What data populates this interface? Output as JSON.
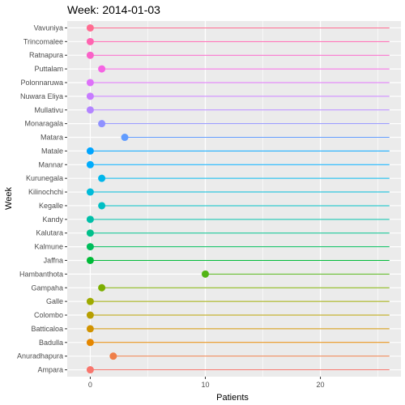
{
  "chart_data": {
    "type": "scatter",
    "title": "Week: 2014-01-03",
    "xlabel": "Patients",
    "ylabel": "Week",
    "xlim": [
      -2,
      27
    ],
    "x_ticks": [
      0,
      10,
      20
    ],
    "segment_end": 26,
    "grid": true,
    "legend": "none",
    "categories": [
      "Ampara",
      "Anuradhapura",
      "Badulla",
      "Batticaloa",
      "Colombo",
      "Galle",
      "Gampaha",
      "Hambanthota",
      "Jaffna",
      "Kalmune",
      "Kalutara",
      "Kandy",
      "Kegalle",
      "Kilinochchi",
      "Kurunegala",
      "Mannar",
      "Matale",
      "Matara",
      "Monaragala",
      "Mullativu",
      "Nuwara Eliya",
      "Polonnaruwa",
      "Puttalam",
      "Ratnapura",
      "Trincomalee",
      "Vavuniya"
    ],
    "values": [
      0,
      2,
      0,
      0,
      0,
      0,
      1,
      10,
      0,
      0,
      0,
      0,
      1,
      0,
      1,
      0,
      0,
      3,
      1,
      0,
      0,
      0,
      1,
      0,
      0,
      0
    ],
    "colors": [
      "#F8766D",
      "#EF7F49",
      "#E58700",
      "#D19300",
      "#B79F00",
      "#9EAA00",
      "#7CAE00",
      "#52B415",
      "#00BA38",
      "#00BD5C",
      "#00C08B",
      "#00BFA8",
      "#00BFC4",
      "#00BBD9",
      "#00B6EB",
      "#00ACFC",
      "#00A5FF",
      "#619CFF",
      "#8F91FF",
      "#B385FF",
      "#C77CFF",
      "#DE71F9",
      "#F564E3",
      "#FA62C8",
      "#FF64B0",
      "#FF6C91"
    ],
    "panel_color": "#EBEBEB",
    "grid_color": "#FFFFFF"
  }
}
